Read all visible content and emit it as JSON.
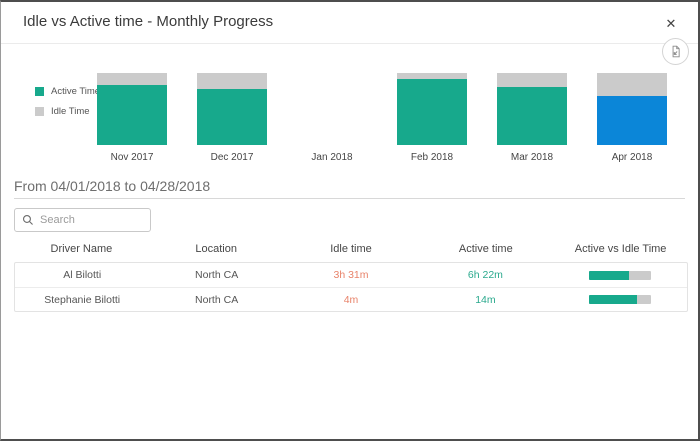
{
  "window": {
    "title": "Idle vs Active time - Monthly Progress"
  },
  "icons": {
    "close": "✕",
    "export": "export-report-icon",
    "search": "magnifier-icon"
  },
  "chart": {
    "legend": [
      {
        "label": "Active Time",
        "color": "#17a98c"
      },
      {
        "label": "Idle Time",
        "color": "#cbcbcb"
      }
    ]
  },
  "chart_data": {
    "type": "bar",
    "subtype": "stacked-percentage",
    "categories": [
      "Nov 2017",
      "Dec 2017",
      "Jan 2018",
      "Feb 2018",
      "Mar 2018",
      "Apr 2018"
    ],
    "series": [
      {
        "name": "Active Time",
        "values": [
          83,
          78,
          0,
          92,
          80,
          68
        ]
      },
      {
        "name": "Idle Time",
        "values": [
          17,
          22,
          0,
          8,
          20,
          32
        ]
      }
    ],
    "highlighted_category": "Apr 2018",
    "colors": {
      "active": "#17a98c",
      "idle": "#cbcbcb",
      "highlight_active": "#0b86d8"
    },
    "ylim": [
      0,
      100
    ],
    "grid": false,
    "legend_position": "left"
  },
  "filter": {
    "label": "From 04/01/2018 to 04/28/2018"
  },
  "search": {
    "placeholder": "Search"
  },
  "table": {
    "columns": [
      "Driver Name",
      "Location",
      "Idle time",
      "Active time",
      "Active vs Idle Time"
    ],
    "rows": [
      {
        "driver": "Al Bilotti",
        "location": "North CA",
        "idle_time": "3h 31m",
        "active_time": "6h 22m",
        "active_pct": 64
      },
      {
        "driver": "Stephanie Bilotti",
        "location": "North CA",
        "idle_time": "4m",
        "active_time": "14m",
        "active_pct": 78
      }
    ],
    "value_colors": {
      "idle_text": "#e8836a",
      "active_text": "#2aa98d"
    },
    "bar_colors": {
      "fill": "#17a98c",
      "track": "#cbcbcb"
    }
  }
}
